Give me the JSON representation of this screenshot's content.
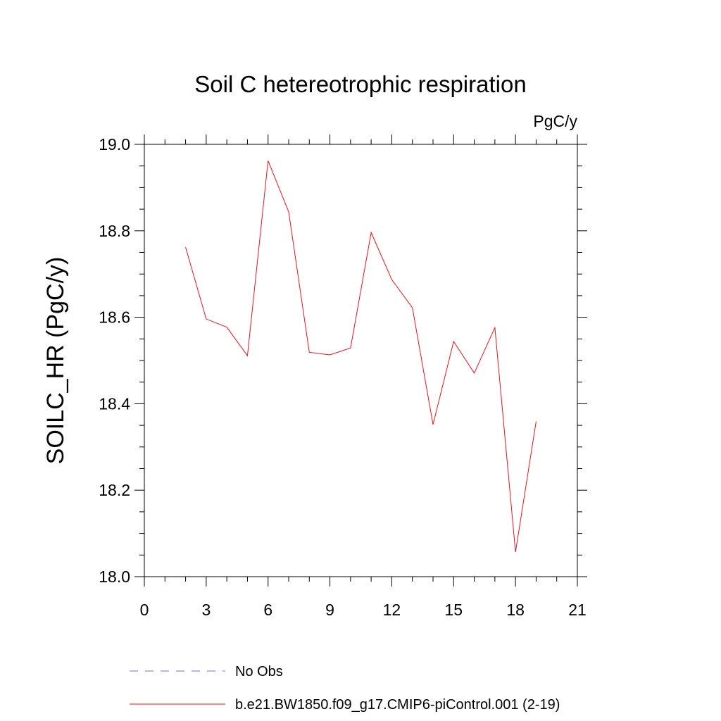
{
  "chart_data": {
    "type": "line",
    "title": "Soil C hetereotrophic respiration",
    "units": "PgC/y",
    "xlabel": "",
    "ylabel": "SOILC_HR  (PgC/y)",
    "xlim": [
      0,
      21
    ],
    "ylim": [
      18.0,
      19.0
    ],
    "x_ticks": [
      "0",
      "3",
      "6",
      "9",
      "12",
      "15",
      "18",
      "21"
    ],
    "y_ticks": [
      "18.0",
      "18.2",
      "18.4",
      "18.6",
      "18.8",
      "19.0"
    ],
    "grid": false,
    "legend_position": "bottom",
    "series": [
      {
        "name": "No Obs",
        "color": "#6f6fd8",
        "style": "dashed",
        "x": [],
        "values": []
      },
      {
        "name": "b.e21.BW1850.f09_g17.CMIP6-piControl.001 (2-19)",
        "color": "#e8141e",
        "style": "solid",
        "x": [
          2,
          3,
          4,
          5,
          6,
          7,
          8,
          9,
          10,
          11,
          12,
          13,
          14,
          15,
          16,
          17,
          18,
          19
        ],
        "values": [
          18.762,
          18.596,
          18.577,
          18.511,
          18.962,
          18.844,
          18.519,
          18.513,
          18.529,
          18.796,
          18.687,
          18.622,
          18.352,
          18.544,
          18.471,
          18.576,
          18.057,
          18.359
        ]
      }
    ]
  }
}
